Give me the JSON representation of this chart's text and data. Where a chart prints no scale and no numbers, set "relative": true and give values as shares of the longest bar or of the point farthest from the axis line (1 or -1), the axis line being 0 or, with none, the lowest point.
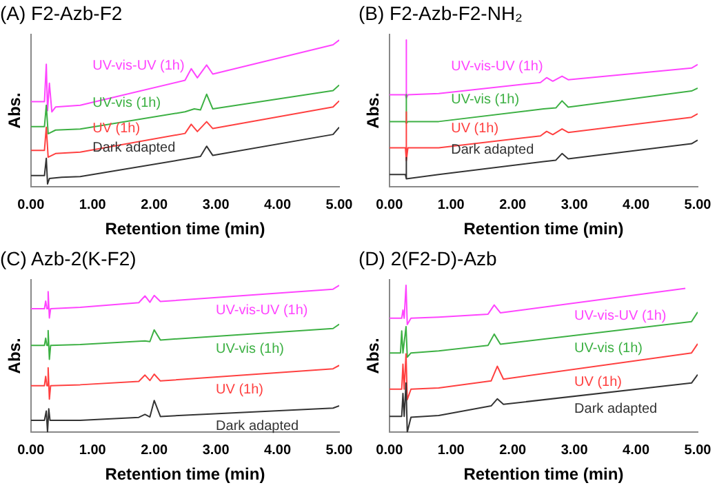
{
  "chart_data": [
    {
      "type": "line",
      "title": "(A) F2-Azb-F2",
      "xlabel": "Retention time (min)",
      "ylabel": "Abs.",
      "relative": true,
      "xlim": [
        0,
        5
      ],
      "xticks": [
        {
          "value": 0,
          "label": "0.00"
        },
        {
          "value": 1,
          "label": "1.00"
        },
        {
          "value": 2,
          "label": "2.00"
        },
        {
          "value": 3,
          "label": "3.00"
        },
        {
          "value": 4,
          "label": "4.00"
        },
        {
          "value": 5,
          "label": "5.00"
        }
      ],
      "marker": "none",
      "series": [
        {
          "name": "Dark adapted",
          "color": "#333333",
          "x": [
            0,
            0.22,
            0.25,
            0.27,
            0.3,
            0.5,
            0.8,
            2.75,
            2.85,
            2.95,
            4.9,
            5.0
          ],
          "values": [
            0.077,
            0.077,
            0.195,
            0.02,
            0.057,
            0.065,
            0.07,
            0.207,
            0.277,
            0.214,
            0.357,
            0.406
          ]
        },
        {
          "name": "UV (1h)",
          "color": "#ff4040",
          "x": [
            0,
            0.22,
            0.25,
            0.28,
            0.4,
            0.8,
            2.5,
            2.6,
            2.7,
            2.85,
            2.95,
            4.9,
            5.0
          ],
          "values": [
            0.249,
            0.249,
            0.406,
            0.202,
            0.227,
            0.237,
            0.364,
            0.426,
            0.377,
            0.444,
            0.397,
            0.544,
            0.586
          ]
        },
        {
          "name": "UV-vis (1h)",
          "color": "#3cb043",
          "x": [
            0,
            0.22,
            0.25,
            0.28,
            0.4,
            0.8,
            2.5,
            2.65,
            2.75,
            2.85,
            2.95,
            4.9,
            5.0
          ],
          "values": [
            0.411,
            0.411,
            0.556,
            0.362,
            0.387,
            0.394,
            0.511,
            0.531,
            0.524,
            0.631,
            0.531,
            0.656,
            0.693
          ]
        },
        {
          "name": "UV-vis-UV (1h)",
          "color": "#ff44ff",
          "x": [
            0,
            0.22,
            0.25,
            0.27,
            0.3,
            0.34,
            0.4,
            0.8,
            2.5,
            2.6,
            2.7,
            2.85,
            2.95,
            4.9,
            5.0
          ],
          "values": [
            0.581,
            0.581,
            0.835,
            0.519,
            0.706,
            0.511,
            0.544,
            0.556,
            0.726,
            0.805,
            0.743,
            0.83,
            0.768,
            0.968,
            1.0
          ]
        }
      ]
    },
    {
      "type": "line",
      "title": "(B) F2-Azb-F2-NH₂",
      "xlabel": "Retention time (min)",
      "ylabel": "Abs.",
      "relative": true,
      "xlim": [
        0,
        5
      ],
      "xticks": [
        {
          "value": 0,
          "label": "0.00"
        },
        {
          "value": 1,
          "label": "1.00"
        },
        {
          "value": 2,
          "label": "2.00"
        },
        {
          "value": 3,
          "label": "3.00"
        },
        {
          "value": 4,
          "label": "4.00"
        },
        {
          "value": 5,
          "label": "5.00"
        }
      ],
      "marker": "none",
      "series": [
        {
          "name": "Dark adapted",
          "color": "#333333",
          "x": [
            0,
            0.26,
            0.27,
            0.28,
            0.8,
            2.5,
            2.7,
            2.8,
            2.9,
            4.9,
            5.0
          ],
          "values": [
            0.084,
            0.084,
            0.199,
            0.055,
            0.084,
            0.172,
            0.182,
            0.227,
            0.191,
            0.294,
            0.318
          ]
        },
        {
          "name": "UV (1h)",
          "color": "#ff4040",
          "x": [
            0,
            0.26,
            0.27,
            0.28,
            0.3,
            0.8,
            2.45,
            2.55,
            2.65,
            2.8,
            2.9,
            4.9,
            5.0
          ],
          "values": [
            0.266,
            0.266,
            0.51,
            0.179,
            0.266,
            0.266,
            0.347,
            0.378,
            0.356,
            0.395,
            0.371,
            0.474,
            0.498
          ]
        },
        {
          "name": "UV-vis (1h)",
          "color": "#3cb043",
          "x": [
            0,
            0.26,
            0.27,
            0.28,
            0.3,
            0.8,
            2.5,
            2.7,
            2.8,
            2.9,
            4.9,
            5.0
          ],
          "values": [
            0.445,
            0.445,
            0.629,
            0.433,
            0.445,
            0.445,
            0.531,
            0.538,
            0.586,
            0.543,
            0.653,
            0.672
          ]
        },
        {
          "name": "UV-vis-UV (1h)",
          "color": "#ff44ff",
          "x": [
            0,
            0.26,
            0.27,
            0.28,
            0.3,
            0.8,
            2.45,
            2.55,
            2.65,
            2.8,
            2.9,
            4.9,
            5.0
          ],
          "values": [
            0.627,
            0.627,
            1.0,
            0.605,
            0.627,
            0.636,
            0.711,
            0.744,
            0.72,
            0.754,
            0.73,
            0.809,
            0.833
          ]
        }
      ]
    },
    {
      "type": "line",
      "title": "(C) Azb-2(K-F2)",
      "xlabel": "Retention time (min)",
      "ylabel": "Abs.",
      "relative": true,
      "xlim": [
        0,
        5
      ],
      "xticks": [
        {
          "value": 0,
          "label": "0.00"
        },
        {
          "value": 1,
          "label": "1.00"
        },
        {
          "value": 2,
          "label": "2.00"
        },
        {
          "value": 3,
          "label": "3.00"
        },
        {
          "value": 4,
          "label": "4.00"
        },
        {
          "value": 5,
          "label": "5.00"
        }
      ],
      "marker": "none",
      "series": [
        {
          "name": "Dark adapted",
          "color": "#333333",
          "x": [
            0,
            0.22,
            0.25,
            0.27,
            0.29,
            0.31,
            0.8,
            1.75,
            1.85,
            1.93,
            2.0,
            2.1,
            4.9,
            5.0
          ],
          "values": [
            0.081,
            0.081,
            0.144,
            0.0,
            0.159,
            0.081,
            0.081,
            0.101,
            0.121,
            0.104,
            0.216,
            0.107,
            0.164,
            0.179
          ]
        },
        {
          "name": "UV (1h)",
          "color": "#ff4040",
          "x": [
            0,
            0.22,
            0.24,
            0.26,
            0.28,
            0.3,
            0.32,
            0.8,
            1.75,
            1.85,
            1.93,
            2.0,
            2.1,
            4.9,
            5.0
          ],
          "values": [
            0.317,
            0.317,
            0.38,
            0.317,
            0.438,
            0.225,
            0.317,
            0.323,
            0.346,
            0.389,
            0.352,
            0.395,
            0.349,
            0.432,
            0.455
          ]
        },
        {
          "name": "UV-vis (1h)",
          "color": "#3cb043",
          "x": [
            0,
            0.22,
            0.24,
            0.26,
            0.28,
            0.3,
            0.32,
            0.8,
            1.85,
            1.93,
            2.0,
            2.1,
            4.9,
            5.0
          ],
          "values": [
            0.591,
            0.591,
            0.64,
            0.591,
            0.692,
            0.496,
            0.591,
            0.597,
            0.622,
            0.617,
            0.697,
            0.628,
            0.706,
            0.735
          ]
        },
        {
          "name": "UV-vis-UV (1h)",
          "color": "#ff44ff",
          "x": [
            0,
            0.22,
            0.24,
            0.26,
            0.28,
            0.3,
            0.32,
            0.8,
            1.75,
            1.85,
            1.93,
            2.0,
            2.1,
            4.9,
            5.0
          ],
          "values": [
            0.841,
            0.841,
            0.893,
            0.841,
            0.957,
            0.778,
            0.841,
            0.85,
            0.882,
            0.928,
            0.885,
            0.931,
            0.89,
            0.974,
            1.0
          ]
        }
      ]
    },
    {
      "type": "line",
      "title": "(D) 2(F2-D)-Azb",
      "xlabel": "Retention time (min)",
      "ylabel": "Abs.",
      "relative": true,
      "xlim": [
        0,
        5
      ],
      "xticks": [
        {
          "value": 0,
          "label": "0.00"
        },
        {
          "value": 1,
          "label": "1.00"
        },
        {
          "value": 2,
          "label": "2.00"
        },
        {
          "value": 3,
          "label": "3.00"
        },
        {
          "value": 4,
          "label": "4.00"
        },
        {
          "value": 5,
          "label": "5.00"
        }
      ],
      "marker": "none",
      "series": [
        {
          "name": "Dark adapted",
          "color": "#333333",
          "x": [
            0,
            0.2,
            0.22,
            0.24,
            0.27,
            0.29,
            0.35,
            0.8,
            1.65,
            1.75,
            1.85,
            4.9,
            5.0
          ],
          "values": [
            0.108,
            0.108,
            0.264,
            0.108,
            0.335,
            0.0,
            0.102,
            0.114,
            0.179,
            0.227,
            0.19,
            0.335,
            0.392
          ]
        },
        {
          "name": "UV (1h)",
          "color": "#ff4040",
          "x": [
            0,
            0.2,
            0.22,
            0.24,
            0.27,
            0.29,
            0.35,
            0.8,
            1.65,
            1.75,
            1.85,
            4.9,
            5.0
          ],
          "values": [
            0.293,
            0.293,
            0.463,
            0.293,
            0.534,
            0.222,
            0.293,
            0.301,
            0.349,
            0.449,
            0.361,
            0.54,
            0.602
          ]
        },
        {
          "name": "UV-vis (1h)",
          "color": "#3cb043",
          "x": [
            0,
            0.18,
            0.2,
            0.22,
            0.27,
            0.29,
            0.35,
            0.8,
            1.6,
            1.7,
            1.8,
            4.9,
            5.0
          ],
          "values": [
            0.54,
            0.54,
            0.69,
            0.54,
            0.719,
            0.511,
            0.54,
            0.554,
            0.591,
            0.668,
            0.599,
            0.753,
            0.818
          ]
        },
        {
          "name": "UV-vis-UV (1h)",
          "color": "#ff44ff",
          "x": [
            0,
            0.2,
            0.22,
            0.24,
            0.27,
            0.29,
            0.35,
            0.8,
            1.6,
            1.7,
            1.8,
            4.8
          ],
          "values": [
            0.776,
            0.776,
            0.832,
            0.776,
            1.0,
            0.733,
            0.776,
            0.784,
            0.804,
            0.866,
            0.813,
            0.98
          ]
        }
      ]
    }
  ]
}
